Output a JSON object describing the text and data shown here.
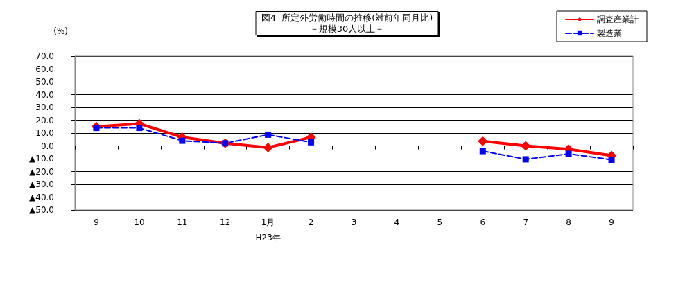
{
  "chart_data": {
    "type": "line",
    "title": "図4  所定外労働時間の推移(対前年同月比)",
    "subtitle": "－規模30人以上－",
    "ylabel": "(%)",
    "categories": [
      "9",
      "10",
      "11",
      "12",
      "1月",
      "2",
      "3",
      "4",
      "5",
      "6",
      "7",
      "8",
      "9"
    ],
    "series": [
      {
        "name": "調査産業計",
        "color": "#ff0000",
        "marker": "diamond",
        "line_style": "solid",
        "values": [
          15.0,
          17.3,
          6.7,
          2.0,
          -1.3,
          6.7,
          null,
          null,
          null,
          3.6,
          0.0,
          -2.6,
          -7.6
        ]
      },
      {
        "name": "製造業",
        "color": "#0000ff",
        "marker": "square",
        "line_style": "dashed",
        "values": [
          14.0,
          14.0,
          4.0,
          2.0,
          8.7,
          2.8,
          null,
          null,
          null,
          -4.1,
          -10.5,
          -6.2,
          -10.8
        ]
      }
    ],
    "ylim": [
      -50,
      70
    ],
    "yticks": [
      {
        "value": -50,
        "label": "▲50.0"
      },
      {
        "value": -40,
        "label": "▲40.0"
      },
      {
        "value": -30,
        "label": "▲30.0"
      },
      {
        "value": -20,
        "label": "▲20.0"
      },
      {
        "value": -10,
        "label": "▲10.0"
      },
      {
        "value": 0,
        "label": "0.0"
      },
      {
        "value": 10,
        "label": "10.0"
      },
      {
        "value": 20,
        "label": "20.0"
      },
      {
        "value": 30,
        "label": "30.0"
      },
      {
        "value": 40,
        "label": "40.0"
      },
      {
        "value": 50,
        "label": "50.0"
      },
      {
        "value": 60,
        "label": "60.0"
      },
      {
        "value": 70,
        "label": "70.0"
      }
    ],
    "grid": "y",
    "legend": "top right",
    "annotations": [
      "H23年"
    ]
  }
}
